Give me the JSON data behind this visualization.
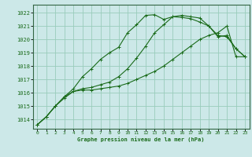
{
  "title": "Graphe pression niveau de la mer (hPa)",
  "background_color": "#cce8e8",
  "grid_color": "#99ccbb",
  "line_color": "#1a6b1a",
  "xlim": [
    -0.5,
    23.5
  ],
  "ylim": [
    1013.3,
    1022.6
  ],
  "yticks": [
    1014,
    1015,
    1016,
    1017,
    1018,
    1019,
    1020,
    1021,
    1022
  ],
  "xticks": [
    0,
    1,
    2,
    3,
    4,
    5,
    6,
    7,
    8,
    9,
    10,
    11,
    12,
    13,
    14,
    15,
    16,
    17,
    18,
    19,
    20,
    21,
    22,
    23
  ],
  "curve1_x": [
    0,
    1,
    2,
    3,
    4,
    5,
    6,
    7,
    8,
    9,
    10,
    11,
    12,
    13,
    14,
    15,
    16,
    17,
    18,
    19,
    20,
    21,
    22,
    23
  ],
  "curve1_y": [
    1013.6,
    1014.2,
    1015.0,
    1015.7,
    1016.1,
    1016.2,
    1016.2,
    1016.3,
    1016.4,
    1016.5,
    1016.7,
    1017.0,
    1017.3,
    1017.6,
    1018.0,
    1018.5,
    1019.0,
    1019.5,
    1020.0,
    1020.3,
    1020.5,
    1021.0,
    1018.7,
    1018.7
  ],
  "curve2_x": [
    0,
    1,
    2,
    3,
    4,
    5,
    6,
    7,
    8,
    9,
    10,
    11,
    12,
    13,
    14,
    15,
    16,
    17,
    18,
    19,
    20,
    21,
    22,
    23
  ],
  "curve2_y": [
    1013.6,
    1014.2,
    1015.0,
    1015.6,
    1016.1,
    1016.3,
    1016.4,
    1016.6,
    1016.8,
    1017.2,
    1017.8,
    1018.6,
    1019.5,
    1020.5,
    1021.1,
    1021.7,
    1021.8,
    1021.7,
    1021.6,
    1021.0,
    1020.2,
    1020.3,
    1019.3,
    1018.7
  ],
  "curve3_x": [
    0,
    1,
    2,
    3,
    4,
    5,
    6,
    7,
    8,
    9,
    10,
    11,
    12,
    13,
    14,
    15,
    16,
    17,
    18,
    19,
    20,
    21,
    22,
    23
  ],
  "curve3_y": [
    1013.6,
    1014.2,
    1015.0,
    1015.7,
    1016.3,
    1017.2,
    1017.8,
    1018.5,
    1019.0,
    1019.4,
    1020.5,
    1021.1,
    1021.8,
    1021.85,
    1021.5,
    1021.7,
    1021.65,
    1021.55,
    1021.3,
    1021.0,
    1020.3,
    1020.2,
    1019.3,
    1018.7
  ],
  "marker": "+"
}
